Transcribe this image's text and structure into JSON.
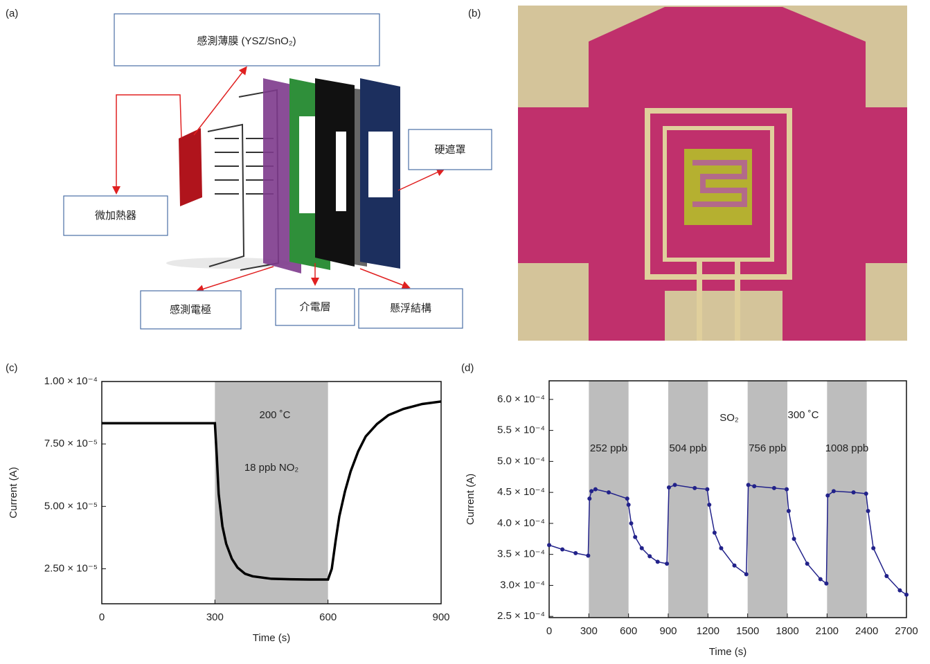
{
  "panels": [
    "(a)",
    "(b)",
    "(c)",
    "(d)"
  ],
  "diagram": {
    "labels": [
      "感測薄膜 (YSZ/SnO₂)",
      "硬遮罩",
      "微加熱器",
      "感測電極",
      "介電層",
      "懸浮結構"
    ]
  },
  "chart_data": [
    {
      "type": "line",
      "xlabel": "Time (s)",
      "ylabel": "Current (A)",
      "xlim": [
        0,
        900
      ],
      "xticks": [
        0,
        300,
        600,
        900
      ],
      "ylim": [
        1.1e-05,
        0.0001
      ],
      "yticks": [
        {
          "value": 2.5e-05,
          "label": "2.50 × 10⁻⁵"
        },
        {
          "value": 5e-05,
          "label": "5.00 × 10⁻⁵"
        },
        {
          "value": 7.5e-05,
          "label": "7.50 × 10⁻⁵"
        },
        {
          "value": 0.0001,
          "label": "1.00 × 10⁻⁴"
        }
      ],
      "bands": [
        {
          "span": [
            300,
            600
          ],
          "label": "18 ppb NO₂"
        }
      ],
      "annotations": [
        "200 ˚C"
      ],
      "x": [
        0,
        100,
        200,
        295,
        300,
        305,
        310,
        320,
        330,
        345,
        360,
        380,
        400,
        450,
        500,
        550,
        600,
        610,
        620,
        630,
        645,
        660,
        680,
        700,
        730,
        760,
        800,
        850,
        900
      ],
      "series": [
        {
          "color": "#000000",
          "values": [
            8.33e-05,
            8.33e-05,
            8.33e-05,
            8.33e-05,
            8.33e-05,
            7e-05,
            5.5e-05,
            4.2e-05,
            3.5e-05,
            2.9e-05,
            2.55e-05,
            2.3e-05,
            2.2e-05,
            2.1e-05,
            2.08e-05,
            2.07e-05,
            2.07e-05,
            2.5e-05,
            3.6e-05,
            4.6e-05,
            5.6e-05,
            6.4e-05,
            7.2e-05,
            7.8e-05,
            8.3e-05,
            8.65e-05,
            8.9e-05,
            9.1e-05,
            9.2e-05
          ]
        }
      ]
    },
    {
      "type": "line",
      "xlabel": "Time (s)",
      "ylabel": "Current (A)",
      "xlim": [
        0,
        2700
      ],
      "xticks": [
        0,
        300,
        600,
        900,
        1200,
        1500,
        1800,
        2100,
        2400,
        2700
      ],
      "ylim": [
        0.000248,
        0.00063
      ],
      "yticks": [
        {
          "value": 0.00025,
          "label": "2.5 × 10⁻⁴"
        },
        {
          "value": 0.0003,
          "label": "3.0× 10⁻⁴"
        },
        {
          "value": 0.00035,
          "label": "3.5 × 10⁻⁴"
        },
        {
          "value": 0.0004,
          "label": "4.0 × 10⁻⁴"
        },
        {
          "value": 0.00045,
          "label": "4.5 × 10⁻⁴"
        },
        {
          "value": 0.0005,
          "label": "5.0 × 10⁻⁴"
        },
        {
          "value": 0.00055,
          "label": "5.5 × 10⁻⁴"
        },
        {
          "value": 0.0006,
          "label": "6.0 × 10⁻⁴"
        }
      ],
      "bands": [
        {
          "span": [
            300,
            600
          ],
          "label": "252 ppb"
        },
        {
          "span": [
            900,
            1200
          ],
          "label": "504 ppb"
        },
        {
          "span": [
            1500,
            1800
          ],
          "label": "756 ppb"
        },
        {
          "span": [
            2100,
            2400
          ],
          "label": "1008 ppb"
        }
      ],
      "annotations": [
        "SO₂",
        "300 ˚C"
      ],
      "markers": true,
      "x": [
        0,
        100,
        200,
        295,
        305,
        320,
        350,
        450,
        590,
        600,
        620,
        650,
        700,
        760,
        820,
        890,
        905,
        950,
        1100,
        1195,
        1210,
        1250,
        1300,
        1400,
        1490,
        1505,
        1550,
        1700,
        1795,
        1810,
        1850,
        1950,
        2050,
        2095,
        2105,
        2150,
        2300,
        2395,
        2410,
        2450,
        2550,
        2650,
        2700
      ],
      "series": [
        {
          "color": "#22228a",
          "values": [
            0.000365,
            0.000358,
            0.000352,
            0.000348,
            0.00044,
            0.000452,
            0.000455,
            0.00045,
            0.00044,
            0.00043,
            0.0004,
            0.000378,
            0.00036,
            0.000347,
            0.000338,
            0.000335,
            0.000458,
            0.000462,
            0.000457,
            0.000455,
            0.00043,
            0.000385,
            0.00036,
            0.000332,
            0.000318,
            0.000462,
            0.00046,
            0.000457,
            0.000455,
            0.00042,
            0.000375,
            0.000335,
            0.00031,
            0.000303,
            0.000445,
            0.000452,
            0.00045,
            0.000448,
            0.00042,
            0.00036,
            0.000315,
            0.000292,
            0.000285
          ]
        }
      ]
    }
  ]
}
